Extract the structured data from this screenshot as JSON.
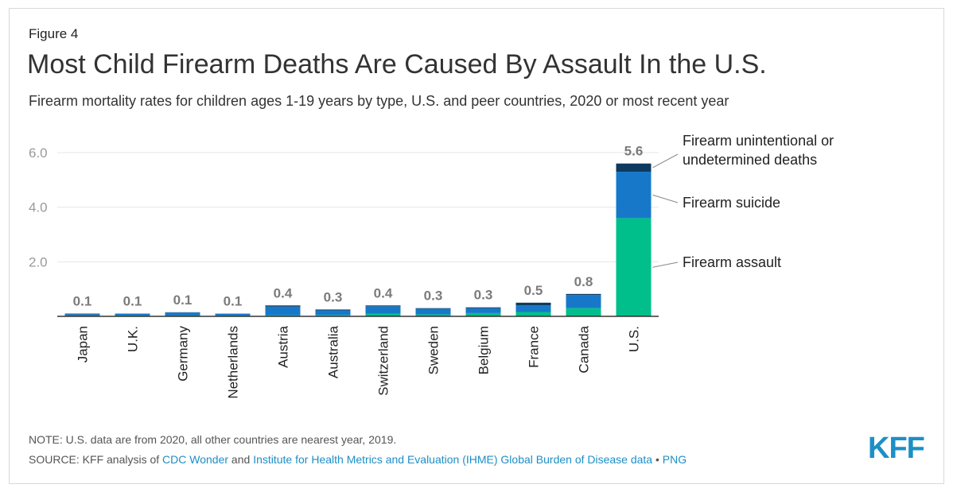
{
  "header": {
    "figure_label": "Figure 4",
    "title": "Most Child Firearm Deaths Are Caused By Assault In the U.S.",
    "subtitle": "Firearm mortality rates for children ages 1-19 years by type, U.S. and peer countries, 2020 or most recent year"
  },
  "footer": {
    "note": "NOTE: U.S. data are from 2020, all other countries are nearest year, 2019.",
    "source_prefix": "SOURCE: KFF analysis of ",
    "link_cdc": "CDC Wonder",
    "and_text": " and ",
    "link_ihme": "Institute for Health Metrics and Evaluation (IHME) Global Burden of Disease data",
    "bullet": " • ",
    "link_png": "PNG",
    "logo": "KFF"
  },
  "colors": {
    "assault": "#00bf8a",
    "suicide": "#1778c9",
    "unintentional": "#0d3a5e",
    "total_label": "#7b7b7b",
    "axis_text": "#9a9a9a",
    "link": "#1d8fc6"
  },
  "chart_data": {
    "type": "bar",
    "stacked": true,
    "categories": [
      "Japan",
      "U.K.",
      "Germany",
      "Netherlands",
      "Austria",
      "Australia",
      "Switzerland",
      "Sweden",
      "Belgium",
      "France",
      "Canada",
      "U.S."
    ],
    "series": [
      {
        "name": "Firearm assault",
        "values": [
          0.02,
          0.03,
          0.03,
          0.03,
          0.04,
          0.05,
          0.1,
          0.07,
          0.12,
          0.16,
          0.3,
          3.6
        ]
      },
      {
        "name": "Firearm suicide",
        "values": [
          0.06,
          0.06,
          0.11,
          0.07,
          0.32,
          0.17,
          0.27,
          0.21,
          0.18,
          0.24,
          0.48,
          1.7
        ]
      },
      {
        "name": "Firearm unintentional or undetermined deaths",
        "values": [
          0.02,
          0.01,
          0.01,
          0.0,
          0.04,
          0.03,
          0.03,
          0.02,
          0.03,
          0.1,
          0.04,
          0.3
        ]
      }
    ],
    "totals": [
      "0.1",
      "0.1",
      "0.1",
      "0.1",
      "0.4",
      "0.3",
      "0.4",
      "0.3",
      "0.3",
      "0.5",
      "0.8",
      "5.6"
    ],
    "yticks": [
      "2.0",
      "4.0",
      "6.0"
    ],
    "ylim": [
      0,
      6.0
    ],
    "grid": true,
    "legend_placement": "right of last bar"
  }
}
